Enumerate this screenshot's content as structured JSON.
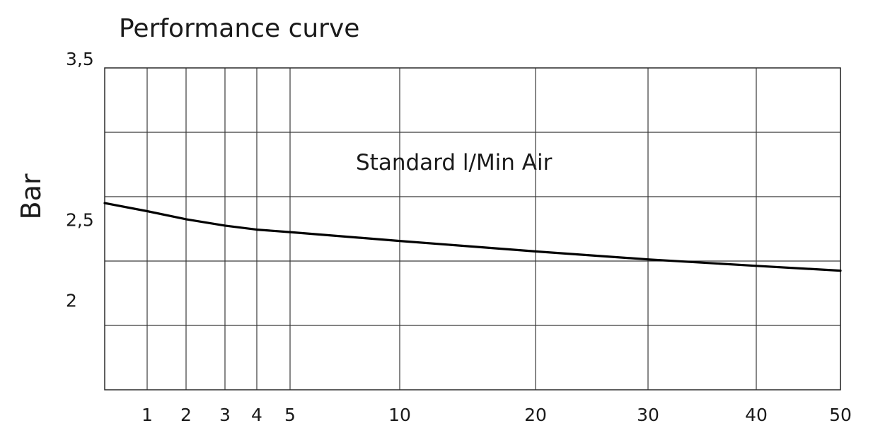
{
  "chart_data": {
    "type": "line",
    "title": "Performance curve",
    "ylabel": "Bar",
    "xlabel": "",
    "annotation": "Standard l/Min Air",
    "x_ticks": [
      1,
      2,
      3,
      4,
      5,
      10,
      20,
      30,
      40,
      50
    ],
    "x_tick_labels": [
      "1",
      "2",
      "3",
      "4",
      "5",
      "10",
      "20",
      "30",
      "40",
      "50"
    ],
    "y_ticks": [
      2,
      2.5,
      3.5
    ],
    "y_tick_labels": [
      "2",
      "2,5",
      "3,5"
    ],
    "ylim": [
      1.5,
      3.5
    ],
    "grid": true,
    "series": [
      {
        "x": [
          0,
          1,
          2,
          3,
          4,
          5,
          10,
          20,
          30,
          40,
          50
        ],
        "y": [
          2.66,
          2.61,
          2.56,
          2.52,
          2.495,
          2.48,
          2.425,
          2.36,
          2.31,
          2.27,
          2.24
        ]
      }
    ]
  }
}
